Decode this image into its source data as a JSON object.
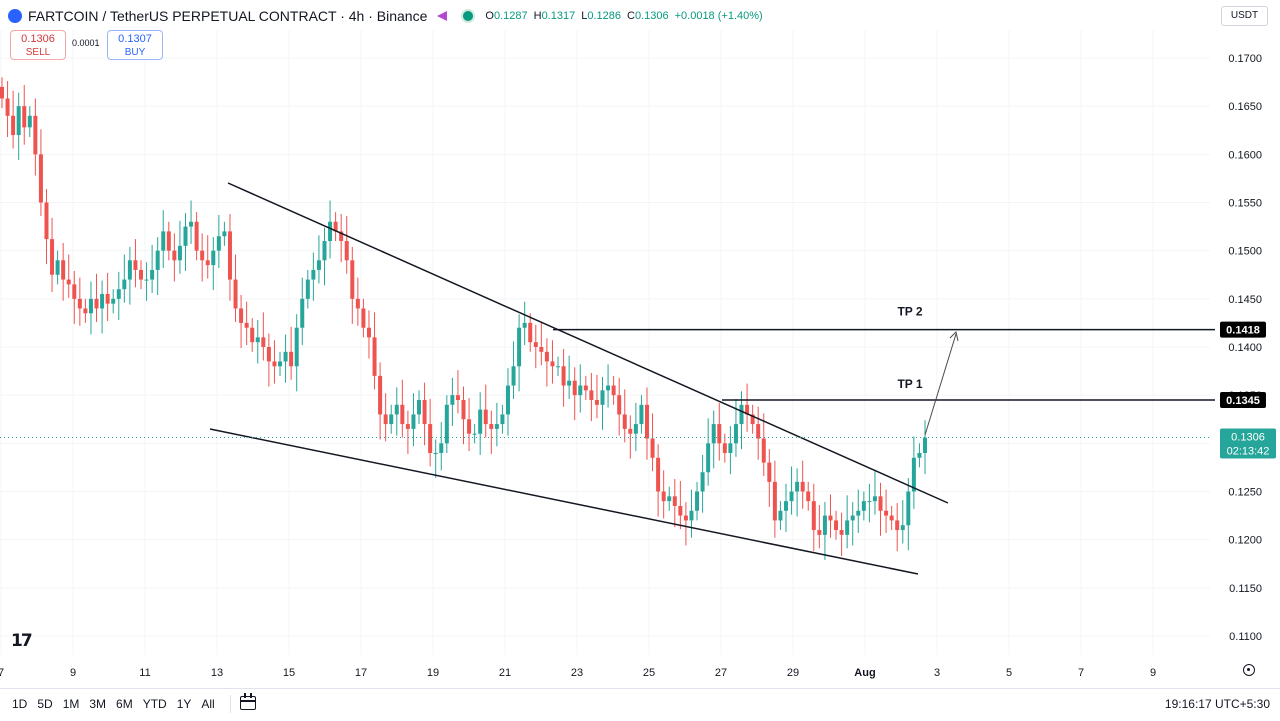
{
  "header": {
    "title": "FARTCOIN / TetherUS PERPETUAL CONTRACT · 4h · Binance",
    "ohlc": {
      "o_label": "O",
      "o": "0.1287",
      "h_label": "H",
      "h": "0.1317",
      "l_label": "L",
      "l": "0.1286",
      "c_label": "C",
      "c": "0.1306",
      "change": "+0.0018 (+1.40%)"
    }
  },
  "trade": {
    "sell_price": "0.1306",
    "sell_label": "SELL",
    "spread": "0.0001",
    "buy_price": "0.1307",
    "buy_label": "BUY"
  },
  "currency": "USDT",
  "chart_data": {
    "type": "candlestick",
    "title": "FARTCOIN / TetherUS PERPETUAL CONTRACT · 4h · Binance",
    "y_ticks": [
      "0.1700",
      "0.1650",
      "0.1600",
      "0.1550",
      "0.1500",
      "0.1450",
      "0.1400",
      "0.1350",
      "0.1300",
      "0.1250",
      "0.1200",
      "0.1150",
      "0.1100"
    ],
    "ylim": [
      0.107,
      0.1725
    ],
    "x_ticks": [
      "7",
      "9",
      "11",
      "13",
      "15",
      "17",
      "19",
      "21",
      "23",
      "25",
      "27",
      "29",
      "Aug",
      "3",
      "5",
      "7",
      "9"
    ],
    "current_price": "0.1306",
    "countdown": "02:13:42",
    "levels": [
      {
        "label": "TP 2",
        "value": "0.1418"
      },
      {
        "label": "TP 1",
        "value": "0.1345"
      }
    ],
    "pattern": "falling wedge",
    "closes": [
      0.1658,
      0.164,
      0.162,
      0.165,
      0.1628,
      0.164,
      0.16,
      0.155,
      0.1512,
      0.1475,
      0.149,
      0.147,
      0.1465,
      0.145,
      0.144,
      0.1435,
      0.145,
      0.144,
      0.1455,
      0.1445,
      0.145,
      0.146,
      0.147,
      0.149,
      0.148,
      0.147,
      0.147,
      0.148,
      0.15,
      0.152,
      0.15,
      0.149,
      0.1505,
      0.1525,
      0.153,
      0.15,
      0.149,
      0.1485,
      0.15,
      0.1515,
      0.152,
      0.147,
      0.144,
      0.1425,
      0.142,
      0.1405,
      0.141,
      0.14,
      0.1385,
      0.138,
      0.1385,
      0.1395,
      0.138,
      0.142,
      0.145,
      0.147,
      0.148,
      0.149,
      0.151,
      0.153,
      0.152,
      0.151,
      0.149,
      0.145,
      0.144,
      0.142,
      0.141,
      0.137,
      0.133,
      0.132,
      0.133,
      0.134,
      0.132,
      0.1315,
      0.133,
      0.1345,
      0.132,
      0.129,
      0.129,
      0.13,
      0.134,
      0.135,
      0.1345,
      0.1325,
      0.131,
      0.131,
      0.1335,
      0.132,
      0.1315,
      0.132,
      0.133,
      0.136,
      0.138,
      0.142,
      0.1425,
      0.1405,
      0.14,
      0.1395,
      0.1385,
      0.138,
      0.138,
      0.136,
      0.1365,
      0.135,
      0.136,
      0.1355,
      0.1345,
      0.134,
      0.1355,
      0.136,
      0.135,
      0.133,
      0.1315,
      0.131,
      0.132,
      0.134,
      0.1305,
      0.1285,
      0.125,
      0.124,
      0.1245,
      0.1235,
      0.1225,
      0.122,
      0.123,
      0.125,
      0.127,
      0.13,
      0.132,
      0.13,
      0.129,
      0.13,
      0.132,
      0.134,
      0.133,
      0.132,
      0.1305,
      0.128,
      0.126,
      0.122,
      0.123,
      0.124,
      0.125,
      0.126,
      0.125,
      0.124,
      0.121,
      0.1205,
      0.1225,
      0.122,
      0.121,
      0.1205,
      0.122,
      0.1225,
      0.123,
      0.124,
      0.124,
      0.1245,
      0.123,
      0.1225,
      0.122,
      0.121,
      0.1215,
      0.125,
      0.1285,
      0.129,
      0.1306
    ]
  }
}
